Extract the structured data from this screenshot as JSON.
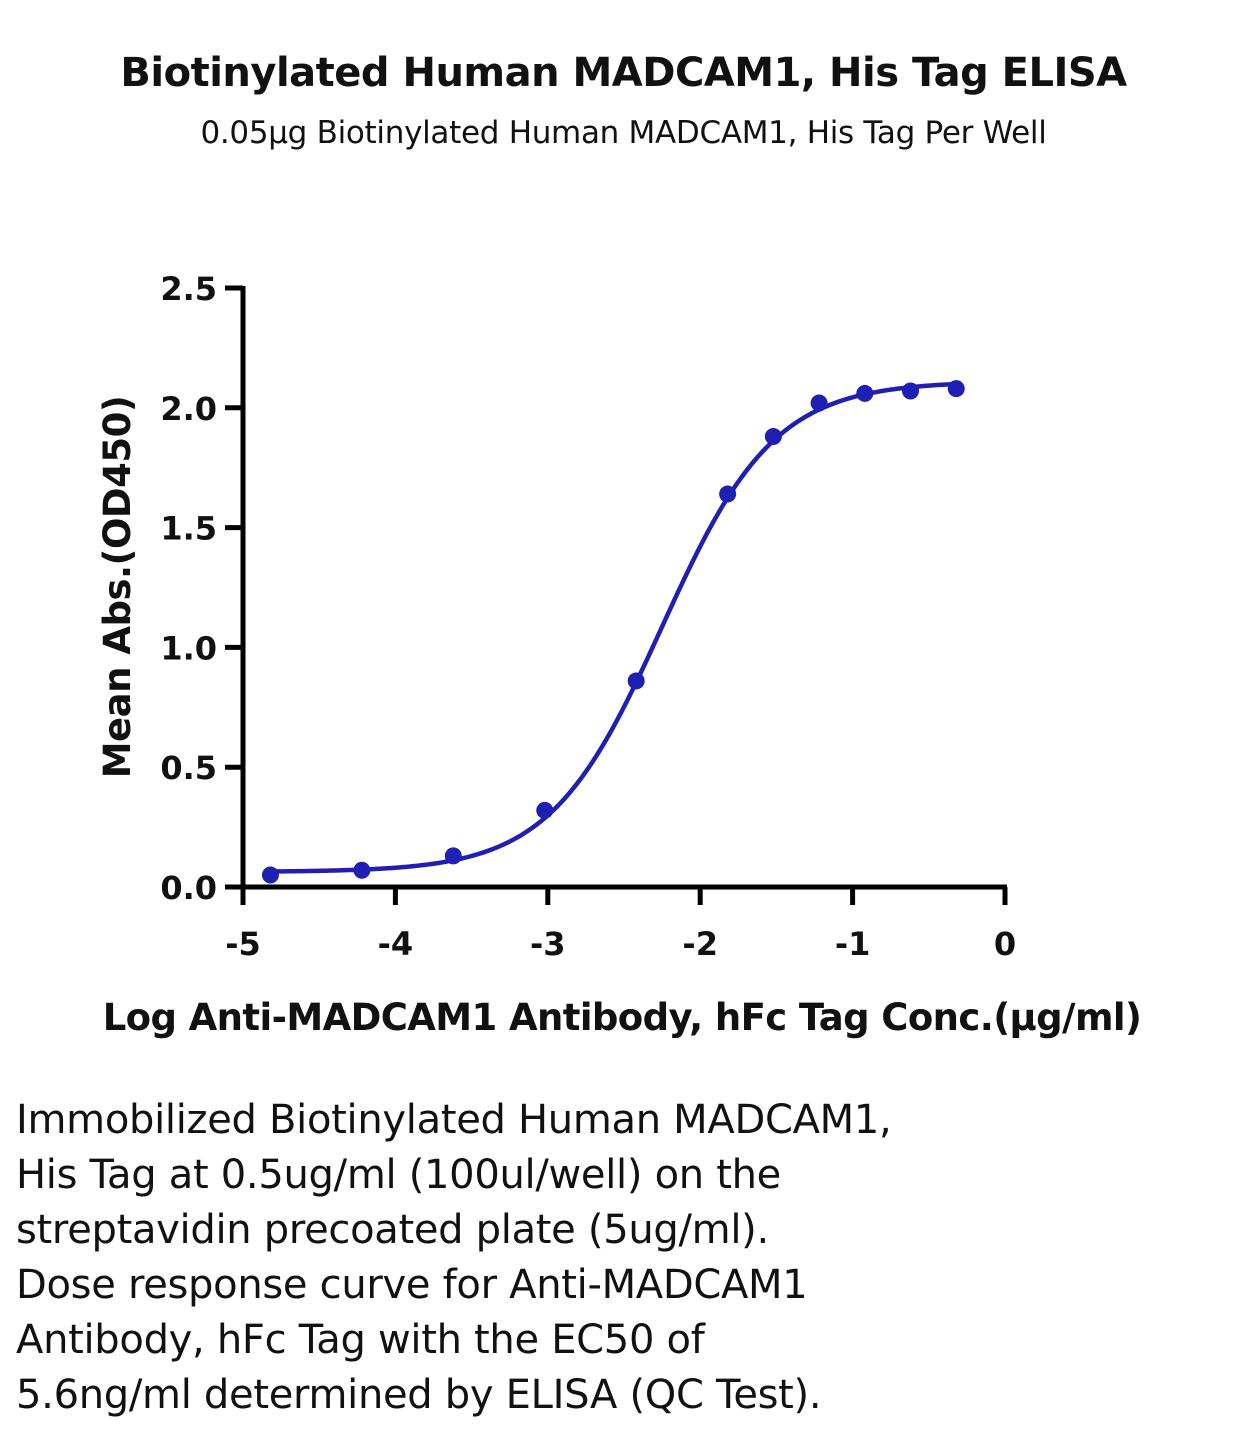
{
  "header": {
    "title": "Biotinylated Human MADCAM1, His Tag ELISA",
    "subtitle": "0.05μg Biotinylated Human MADCAM1, His Tag Per Well"
  },
  "chart_data": {
    "type": "scatter",
    "title": "Biotinylated Human MADCAM1, His Tag ELISA",
    "subtitle": "0.05μg Biotinylated Human MADCAM1, His Tag Per Well",
    "xlabel": "Log Anti-MADCAM1 Antibody, hFc Tag Conc.(μg/ml)",
    "ylabel": "Mean Abs.(OD450)",
    "xlim": [
      -5,
      0
    ],
    "ylim": [
      0,
      2.5
    ],
    "x_ticks": [
      "-5",
      "-4",
      "-3",
      "-2",
      "-1",
      "0"
    ],
    "y_ticks": [
      "0.0",
      "0.5",
      "1.0",
      "1.5",
      "2.0",
      "2.5"
    ],
    "grid": false,
    "legend": "none",
    "color": "#1f1fb4",
    "series": [
      {
        "x": [
          -4.82,
          -4.22,
          -3.62,
          -3.02,
          -2.42,
          -1.82,
          -1.52,
          -1.22,
          -0.92,
          -0.62,
          -0.32
        ],
        "y": [
          0.05,
          0.07,
          0.13,
          0.32,
          0.86,
          1.64,
          1.88,
          2.02,
          2.06,
          2.07,
          2.08
        ]
      }
    ],
    "fit_curve": {
      "type": "4PL",
      "bottom": 0.063,
      "top": 2.11,
      "log_ec50": -2.25,
      "hill_slope": 1.18
    }
  },
  "caption": {
    "lines": [
      "Immobilized Biotinylated Human MADCAM1,",
      "His Tag at 0.5ug/ml (100ul/well) on the",
      "streptavidin precoated plate (5ug/ml).",
      "Dose response curve for Anti-MADCAM1",
      "Antibody, hFc Tag with the EC50 of",
      "5.6ng/ml determined by ELISA (QC Test)."
    ]
  }
}
